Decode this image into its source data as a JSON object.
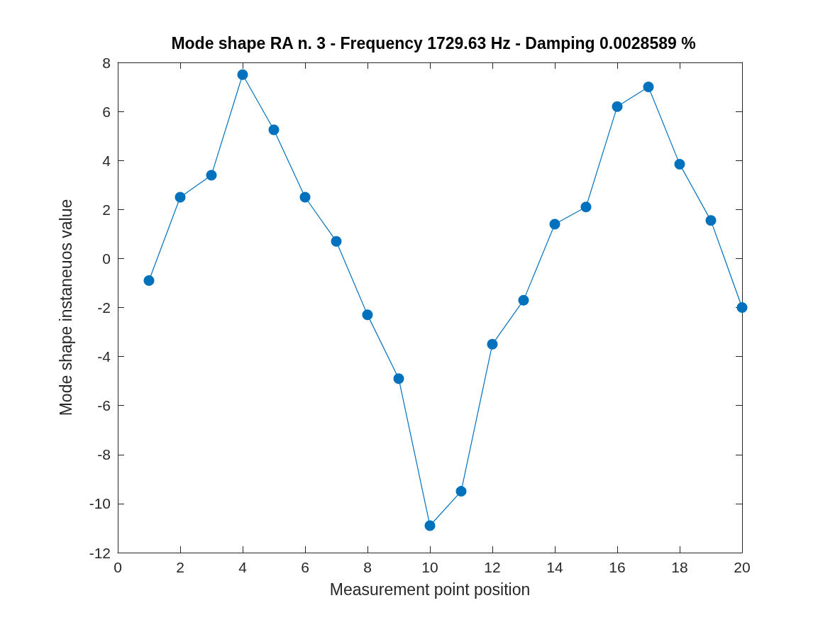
{
  "chart_data": {
    "type": "line",
    "title": "Mode shape RA n. 3 - Frequency 1729.63 Hz - Damping 0.0028589 %",
    "xlabel": "Measurement point position",
    "ylabel": "Mode shape instaneuos value",
    "x": [
      1,
      2,
      3,
      4,
      5,
      6,
      7,
      8,
      9,
      10,
      11,
      12,
      13,
      14,
      15,
      16,
      17,
      18,
      19,
      20
    ],
    "series": [
      {
        "color": "#0072bd",
        "values": [
          -0.9,
          2.5,
          3.4,
          7.5,
          5.25,
          2.5,
          0.7,
          -2.3,
          -4.9,
          -10.9,
          -9.5,
          -3.5,
          -1.7,
          1.4,
          2.1,
          6.2,
          7.0,
          3.85,
          1.55,
          -2.0
        ]
      }
    ],
    "xlim": [
      0,
      20
    ],
    "xticks": [
      0,
      2,
      4,
      6,
      8,
      10,
      12,
      14,
      16,
      18,
      20
    ],
    "ylim": [
      -12,
      8
    ],
    "yticks": [
      -12,
      -10,
      -8,
      -6,
      -4,
      -2,
      0,
      2,
      4,
      6,
      8
    ],
    "marker": "circle",
    "line_style": "solid"
  }
}
